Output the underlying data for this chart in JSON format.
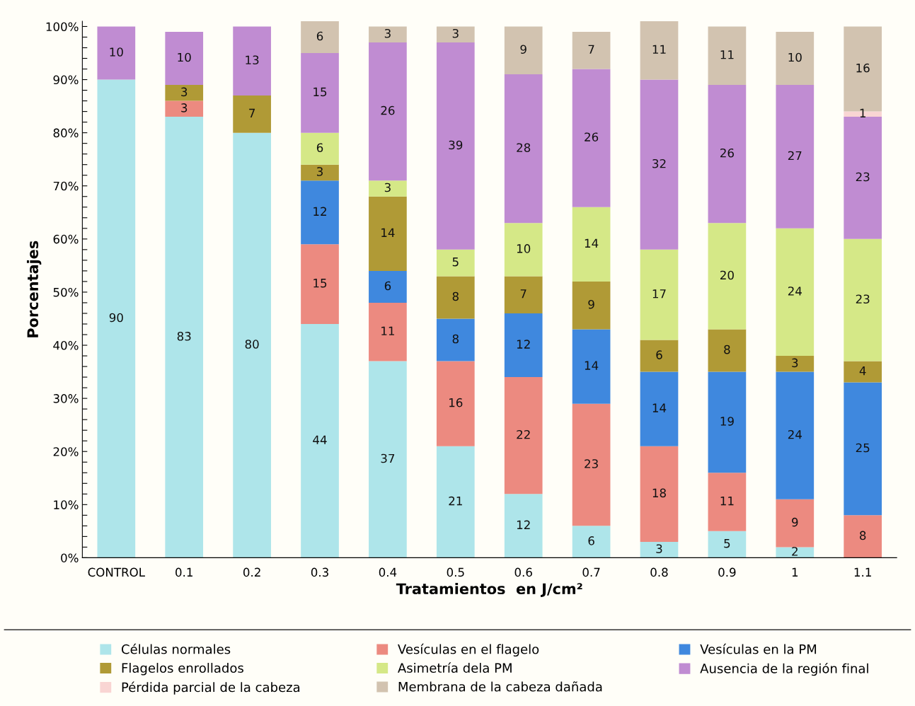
{
  "chart_data": {
    "type": "bar",
    "stacked": true,
    "data_labels": true,
    "legend": "bottom",
    "grid": false,
    "xlabel": "Tratamientos  en J/cm²",
    "ylabel": "Porcentajes",
    "categories": [
      "CONTROL",
      "0.1",
      "0.2",
      "0.3",
      "0.4",
      "0.5",
      "0.6",
      "0.7",
      "0.8",
      "0.9",
      "1",
      "1.1"
    ],
    "ylim": [
      0,
      101
    ],
    "yticks": [
      {
        "value": 0,
        "label": "0%"
      },
      {
        "value": 2,
        "label": null
      },
      {
        "value": 4,
        "label": null
      },
      {
        "value": 6,
        "label": null
      },
      {
        "value": 8,
        "label": null
      },
      {
        "value": 10,
        "label": "10%"
      },
      {
        "value": 12,
        "label": null
      },
      {
        "value": 14,
        "label": null
      },
      {
        "value": 16,
        "label": null
      },
      {
        "value": 18,
        "label": null
      },
      {
        "value": 20,
        "label": "20%"
      },
      {
        "value": 22,
        "label": null
      },
      {
        "value": 24,
        "label": null
      },
      {
        "value": 26,
        "label": null
      },
      {
        "value": 28,
        "label": null
      },
      {
        "value": 30,
        "label": "30%"
      },
      {
        "value": 32,
        "label": null
      },
      {
        "value": 34,
        "label": null
      },
      {
        "value": 36,
        "label": null
      },
      {
        "value": 38,
        "label": null
      },
      {
        "value": 40,
        "label": "40%"
      },
      {
        "value": 42,
        "label": null
      },
      {
        "value": 44,
        "label": null
      },
      {
        "value": 46,
        "label": null
      },
      {
        "value": 48,
        "label": null
      },
      {
        "value": 50,
        "label": "50%"
      },
      {
        "value": 52,
        "label": null
      },
      {
        "value": 54,
        "label": null
      },
      {
        "value": 56,
        "label": null
      },
      {
        "value": 58,
        "label": null
      },
      {
        "value": 60,
        "label": "60%"
      },
      {
        "value": 62,
        "label": null
      },
      {
        "value": 64,
        "label": null
      },
      {
        "value": 66,
        "label": null
      },
      {
        "value": 68,
        "label": null
      },
      {
        "value": 70,
        "label": "70%"
      },
      {
        "value": 72,
        "label": null
      },
      {
        "value": 74,
        "label": null
      },
      {
        "value": 76,
        "label": null
      },
      {
        "value": 78,
        "label": null
      },
      {
        "value": 80,
        "label": "80%"
      },
      {
        "value": 82,
        "label": null
      },
      {
        "value": 84,
        "label": null
      },
      {
        "value": 86,
        "label": null
      },
      {
        "value": 88,
        "label": null
      },
      {
        "value": 90,
        "label": "90%"
      },
      {
        "value": 92,
        "label": null
      },
      {
        "value": 94,
        "label": null
      },
      {
        "value": 96,
        "label": null
      },
      {
        "value": 98,
        "label": null
      },
      {
        "value": 100,
        "label": "100%"
      }
    ],
    "series": [
      {
        "name": "Células normales",
        "color": "#aee5ea",
        "values": [
          90,
          83,
          80,
          44,
          37,
          21,
          12,
          6,
          3,
          5,
          2,
          null
        ]
      },
      {
        "name": "Vesículas en el flagelo",
        "color": "#ec8a80",
        "values": [
          null,
          3,
          null,
          15,
          11,
          16,
          22,
          23,
          18,
          11,
          9,
          8
        ]
      },
      {
        "name": "Vesículas en la PM",
        "color": "#3f88de",
        "values": [
          null,
          null,
          null,
          12,
          6,
          8,
          12,
          14,
          14,
          19,
          24,
          25
        ]
      },
      {
        "name": "Flagelos enrollados",
        "color": "#b09a36",
        "values": [
          null,
          3,
          7,
          3,
          14,
          8,
          7,
          9,
          6,
          8,
          3,
          4
        ]
      },
      {
        "name": "Asimetría dela PM",
        "color": "#d5e887",
        "values": [
          null,
          null,
          null,
          6,
          3,
          5,
          10,
          14,
          17,
          20,
          24,
          23
        ]
      },
      {
        "name": "Ausencia de la región final",
        "color": "#c08cd2",
        "values": [
          10,
          10,
          13,
          15,
          26,
          39,
          28,
          26,
          32,
          26,
          27,
          23
        ]
      },
      {
        "name": "Pérdida parcial de la cabeza",
        "color": "#f9d5d3",
        "values": [
          null,
          null,
          null,
          null,
          null,
          null,
          null,
          null,
          null,
          null,
          null,
          1
        ]
      },
      {
        "name": "Membrana de la cabeza dañada",
        "color": "#d2c3b0",
        "values": [
          null,
          null,
          null,
          6,
          3,
          3,
          9,
          7,
          11,
          11,
          10,
          16
        ]
      }
    ]
  }
}
